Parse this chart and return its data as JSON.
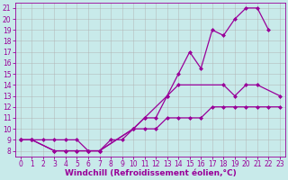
{
  "xlabel": "Windchill (Refroidissement éolien,°C)",
  "line_color": "#990099",
  "bg_color": "#c8eaea",
  "grid_color": "#b0b0b0",
  "xlim": [
    -0.5,
    23.5
  ],
  "ylim": [
    7.5,
    21.5
  ],
  "xticks": [
    0,
    1,
    2,
    3,
    4,
    5,
    6,
    7,
    8,
    9,
    10,
    11,
    12,
    13,
    14,
    15,
    16,
    17,
    18,
    19,
    20,
    21,
    22,
    23
  ],
  "yticks": [
    8,
    9,
    10,
    11,
    12,
    13,
    14,
    15,
    16,
    17,
    18,
    19,
    20,
    21
  ],
  "line1_x": [
    0,
    1,
    2,
    3,
    4,
    5,
    6,
    7,
    8,
    9,
    10,
    11,
    12,
    13,
    14,
    15,
    16,
    17,
    18,
    19,
    20,
    21,
    22,
    23
  ],
  "line1_y": [
    9,
    9,
    9,
    9,
    9,
    9,
    8,
    8,
    9,
    9,
    10,
    10,
    10,
    11,
    11,
    11,
    11,
    12,
    12,
    12,
    12,
    12,
    12,
    12
  ],
  "line2_x": [
    0,
    1,
    3,
    4,
    5,
    6,
    7,
    10,
    11,
    13,
    14,
    18,
    19,
    20,
    21,
    23
  ],
  "line2_y": [
    9,
    9,
    8,
    8,
    8,
    8,
    8,
    10,
    11,
    13,
    14,
    14,
    13,
    14,
    14,
    13
  ],
  "line3_x": [
    0,
    1,
    3,
    4,
    5,
    6,
    7,
    10,
    11,
    12,
    13,
    14,
    15,
    16,
    17,
    18,
    19,
    20,
    21,
    22
  ],
  "line3_y": [
    9,
    9,
    8,
    8,
    8,
    8,
    8,
    10,
    11,
    11,
    13,
    15,
    17,
    15.5,
    19,
    18.5,
    20,
    21,
    21,
    19
  ],
  "fontsize_label": 6.5,
  "fontsize_tick": 5.5,
  "marker": "D",
  "markersize": 2.0,
  "linewidth": 0.9
}
